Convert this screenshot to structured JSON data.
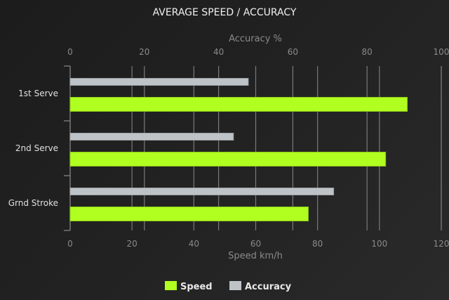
{
  "chart_data": {
    "type": "bar",
    "orientation": "horizontal",
    "title": "AVERAGE SPEED / ACCURACY",
    "categories": [
      "1st Serve",
      "2nd Serve",
      "Grnd Stroke"
    ],
    "series": [
      {
        "name": "Accuracy",
        "axis": "top",
        "color": "#bdc3c7",
        "values": [
          48,
          44,
          71
        ]
      },
      {
        "name": "Speed",
        "axis": "bottom",
        "color": "#b0ff20",
        "values": [
          109,
          102,
          77
        ]
      }
    ],
    "top_axis": {
      "label": "Accuracy %",
      "range": [
        0,
        100
      ],
      "ticks": [
        "0",
        "20",
        "40",
        "60",
        "80",
        "100"
      ]
    },
    "bottom_axis": {
      "label": "Speed km/h",
      "range": [
        0,
        120
      ],
      "ticks": [
        "0",
        "20",
        "40",
        "60",
        "80",
        "100",
        "120"
      ]
    },
    "grid": true,
    "legend": {
      "placement": "bottom",
      "items": [
        "Speed",
        "Accuracy"
      ]
    }
  }
}
